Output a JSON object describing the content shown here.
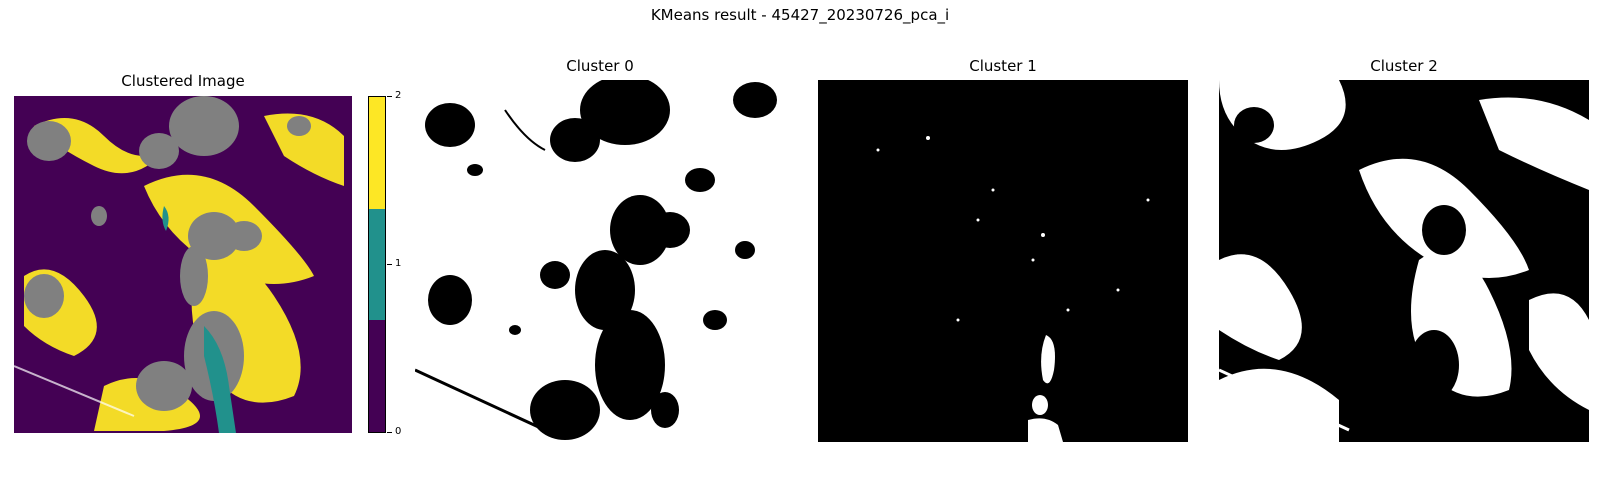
{
  "figure": {
    "title": "KMeans result - 45427_20230726_pca_i"
  },
  "panels": [
    {
      "title": "Clustered Image"
    },
    {
      "title": "Cluster 0"
    },
    {
      "title": "Cluster 1"
    },
    {
      "title": "Cluster 2"
    }
  ],
  "colorbar": {
    "ticks": [
      "0",
      "1",
      "2"
    ],
    "colors": [
      "#440154",
      "#21918c",
      "#fde725"
    ]
  },
  "colors": {
    "cluster_0": "#440154",
    "cluster_1": "#21918c",
    "cluster_2": "#fde725",
    "overlay_gray": "#808080"
  }
}
